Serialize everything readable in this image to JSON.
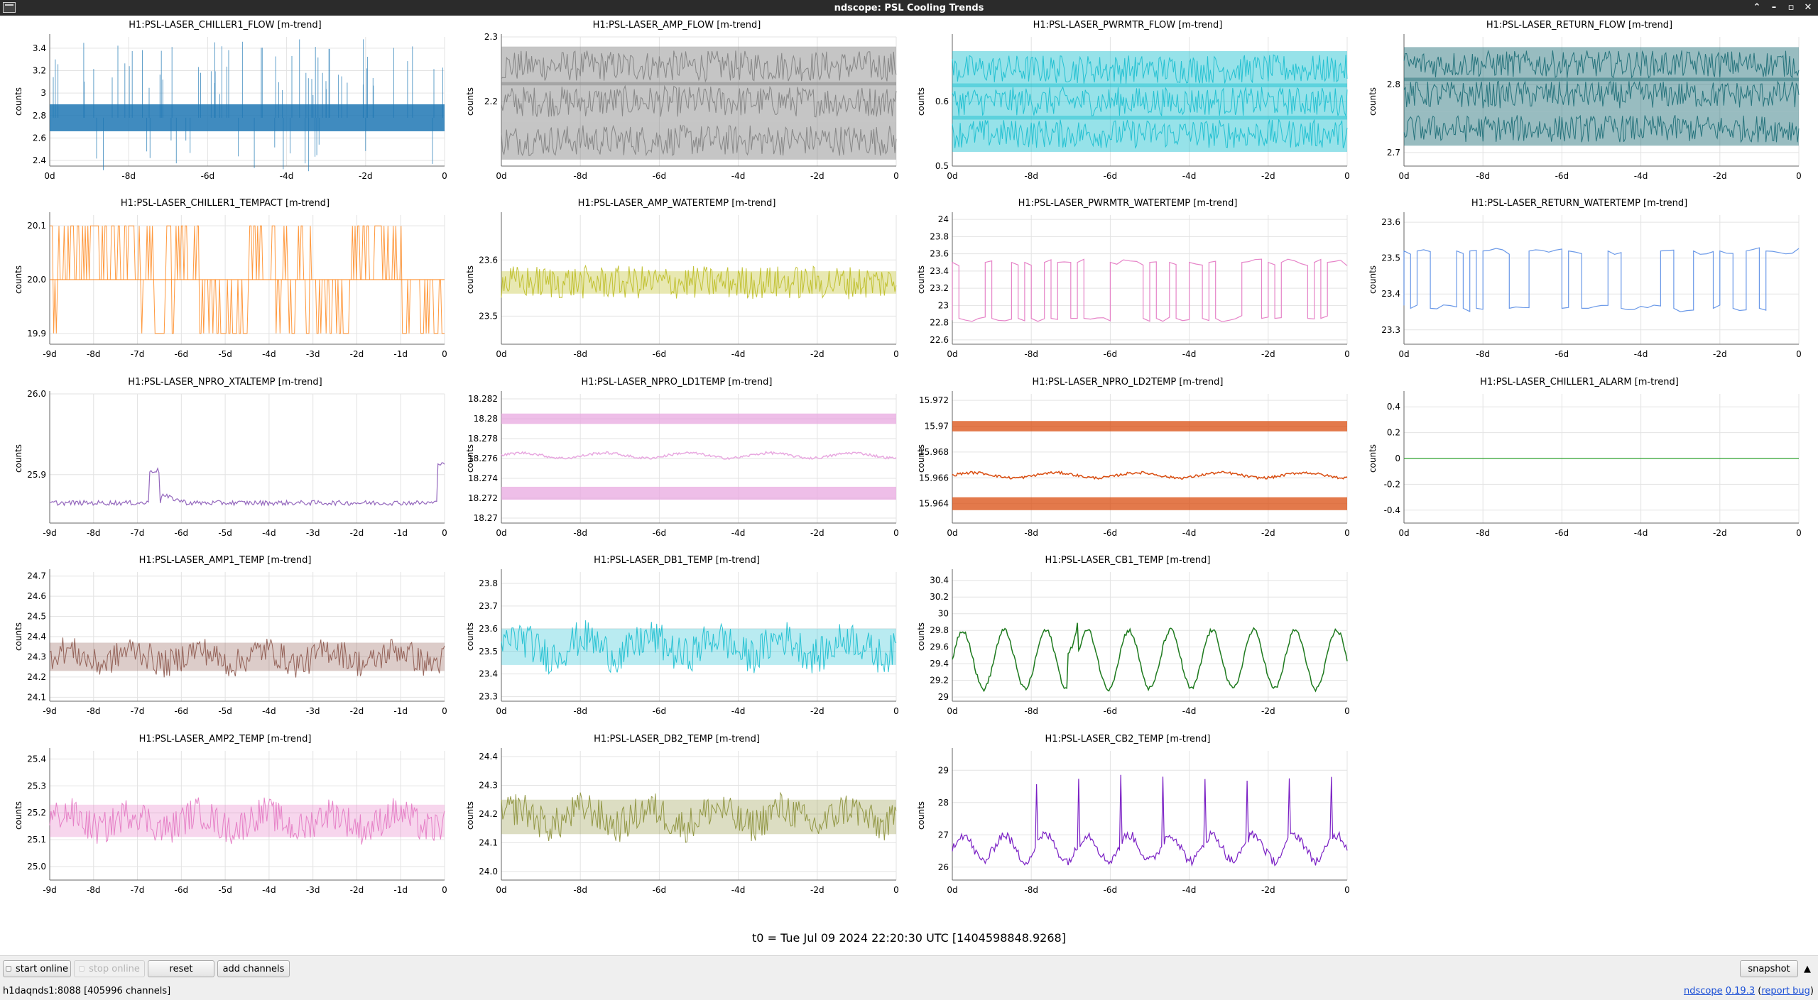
{
  "window": {
    "title": "ndscope: PSL Cooling Trends"
  },
  "icons": [
    "app-icon",
    "keep-above-icon",
    "minimize-icon",
    "maximize-icon",
    "close-icon"
  ],
  "plots": [
    {
      "id": "chiller1-flow",
      "row": 0,
      "col": 0,
      "title": "H1:PSL-LASER_CHILLER1_FLOW [m-trend]",
      "ylabel": "counts",
      "color": "#1f77b4",
      "style": "band",
      "ylim": [
        2.35,
        3.5
      ],
      "yticks": [
        "2.4",
        "2.6",
        "2.8",
        "3",
        "3.2",
        "3.4"
      ],
      "ytickvals": [
        2.4,
        2.6,
        2.8,
        3,
        3.2,
        3.4
      ],
      "xticks": [
        "0d",
        "-8d",
        "-6d",
        "-4d",
        "-2d",
        "0"
      ],
      "center": 2.78,
      "spread": 0.12,
      "spikes": "up"
    },
    {
      "id": "amp-flow",
      "row": 0,
      "col": 1,
      "title": "H1:PSL-LASER_AMP_FLOW [m-trend]",
      "ylabel": "counts",
      "color": "#7f7f7f",
      "style": "bands3",
      "ylim": [
        2.1,
        2.3
      ],
      "yticks": [
        "2.2",
        "2.3"
      ],
      "ytickvals": [
        2.2,
        2.3
      ],
      "xticks": [
        "0d",
        "-8d",
        "-6d",
        "-4d",
        "-2d",
        "0"
      ],
      "bands": [
        2.255,
        2.2,
        2.14
      ],
      "spread": 0.03
    },
    {
      "id": "pwrmtr-flow",
      "row": 0,
      "col": 2,
      "title": "H1:PSL-LASER_PWRMTR_FLOW [m-trend]",
      "ylabel": "counts",
      "color": "#17becf",
      "style": "bands3",
      "ylim": [
        0.5,
        0.7
      ],
      "yticks": [
        "0.5",
        "0.6"
      ],
      "ytickvals": [
        0.5,
        0.6
      ],
      "xticks": [
        "0d",
        "-8d",
        "-6d",
        "-4d",
        "-2d",
        "0"
      ],
      "bands": [
        0.65,
        0.6,
        0.55
      ],
      "spread": 0.028
    },
    {
      "id": "return-flow",
      "row": 0,
      "col": 3,
      "title": "H1:PSL-LASER_RETURN_FLOW [m-trend]",
      "ylabel": "counts",
      "color": "#1a6a74",
      "style": "bands3",
      "ylim": [
        2.68,
        2.87
      ],
      "yticks": [
        "2.7",
        "2.8"
      ],
      "ytickvals": [
        2.7,
        2.8
      ],
      "xticks": [
        "0d",
        "-8d",
        "-6d",
        "-4d",
        "-2d",
        "0"
      ],
      "bands": [
        2.83,
        2.785,
        2.735
      ],
      "spread": 0.025
    },
    {
      "id": "chiller1-tempact",
      "row": 1,
      "col": 0,
      "title": "H1:PSL-LASER_CHILLER1_TEMPACT [m-trend]",
      "ylabel": "counts",
      "color": "#ff7f0e",
      "style": "digital",
      "ylim": [
        19.88,
        20.12
      ],
      "yticks": [
        "19.9",
        "20.0",
        "20.1"
      ],
      "ytickvals": [
        19.9,
        20.0,
        20.1
      ],
      "xticks": [
        "-9d",
        "-8d",
        "-7d",
        "-6d",
        "-5d",
        "-4d",
        "-3d",
        "-2d",
        "-1d",
        "0"
      ],
      "center": 20.0,
      "spread": 0.1
    },
    {
      "id": "amp-watertemp",
      "row": 1,
      "col": 1,
      "title": "H1:PSL-LASER_AMP_WATERTEMP [m-trend]",
      "ylabel": "counts",
      "color": "#bcbd22",
      "style": "noisy",
      "ylim": [
        23.45,
        23.68
      ],
      "yticks": [
        "23.5",
        "23.6"
      ],
      "ytickvals": [
        23.5,
        23.6
      ],
      "xticks": [
        "0d",
        "-8d",
        "-6d",
        "-4d",
        "-2d",
        "0"
      ],
      "center": 23.56,
      "spread": 0.02
    },
    {
      "id": "pwrmtr-watertemp",
      "row": 1,
      "col": 2,
      "title": "H1:PSL-LASER_PWRMTR_WATERTEMP [m-trend]",
      "ylabel": "counts",
      "color": "#e377c2",
      "style": "square",
      "ylim": [
        22.55,
        24.05
      ],
      "yticks": [
        "22.6",
        "22.8",
        "23",
        "23.2",
        "23.4",
        "23.6",
        "23.8",
        "24"
      ],
      "ytickvals": [
        22.6,
        22.8,
        23,
        23.2,
        23.4,
        23.6,
        23.8,
        24
      ],
      "xticks": [
        "0d",
        "-8d",
        "-6d",
        "-4d",
        "-2d",
        "0"
      ],
      "low": 22.85,
      "high": 23.5
    },
    {
      "id": "return-watertemp",
      "row": 1,
      "col": 3,
      "title": "H1:PSL-LASER_RETURN_WATERTEMP [m-trend]",
      "ylabel": "counts",
      "color": "#5b8ee6",
      "style": "square",
      "ylim": [
        23.26,
        23.62
      ],
      "yticks": [
        "23.3",
        "23.4",
        "23.5",
        "23.6"
      ],
      "ytickvals": [
        23.3,
        23.4,
        23.5,
        23.6
      ],
      "xticks": [
        "0d",
        "-8d",
        "-6d",
        "-4d",
        "-2d",
        "0"
      ],
      "low": 23.36,
      "high": 23.52
    },
    {
      "id": "npro-xtaltemp",
      "row": 2,
      "col": 0,
      "title": "H1:PSL-LASER_NPRO_XTALTEMP [m-trend]",
      "ylabel": "counts",
      "color": "#9467bd",
      "style": "xtal",
      "ylim": [
        25.84,
        26.0
      ],
      "yticks": [
        "25.9",
        "26.0"
      ],
      "ytickvals": [
        25.9,
        26.0
      ],
      "xticks": [
        "-9d",
        "-8d",
        "-7d",
        "-6d",
        "-5d",
        "-4d",
        "-3d",
        "-2d",
        "-1d",
        "0"
      ],
      "center": 25.865
    },
    {
      "id": "npro-ld1temp",
      "row": 2,
      "col": 1,
      "title": "H1:PSL-LASER_NPRO_LD1TEMP [m-trend]",
      "ylabel": "counts",
      "color": "#e8a8e0",
      "style": "ld",
      "ylim": [
        18.2695,
        18.2825
      ],
      "yticks": [
        "18.27",
        "18.272",
        "18.274",
        "18.276",
        "18.278",
        "18.28",
        "18.282"
      ],
      "ytickvals": [
        18.27,
        18.272,
        18.274,
        18.276,
        18.278,
        18.28,
        18.282
      ],
      "xticks": [
        "0d",
        "-8d",
        "-6d",
        "-4d",
        "-2d",
        "0"
      ],
      "top": 18.28,
      "mid": 18.2763,
      "bot": 18.2725
    },
    {
      "id": "npro-ld2temp",
      "row": 2,
      "col": 2,
      "title": "H1:PSL-LASER_NPRO_LD2TEMP [m-trend]",
      "ylabel": "counts",
      "color": "#d94c0f",
      "style": "ld",
      "ylim": [
        15.9625,
        15.9725
      ],
      "yticks": [
        "15.964",
        "15.966",
        "15.968",
        "15.97",
        "15.972"
      ],
      "ytickvals": [
        15.964,
        15.966,
        15.968,
        15.97,
        15.972
      ],
      "xticks": [
        "0d",
        "-8d",
        "-6d",
        "-4d",
        "-2d",
        "0"
      ],
      "top": 15.97,
      "mid": 15.9662,
      "bot": 15.964
    },
    {
      "id": "chiller1-alarm",
      "row": 2,
      "col": 3,
      "title": "H1:PSL-LASER_CHILLER1_ALARM [m-trend]",
      "ylabel": "counts",
      "color": "#2ca02c",
      "style": "flat",
      "ylim": [
        -0.5,
        0.5
      ],
      "yticks": [
        "-0.4",
        "-0.2",
        "0",
        "0.2",
        "0.4"
      ],
      "ytickvals": [
        -0.4,
        -0.2,
        0,
        0.2,
        0.4
      ],
      "xticks": [
        "0d",
        "-8d",
        "-6d",
        "-4d",
        "-2d",
        "0"
      ],
      "center": 0
    },
    {
      "id": "amp1-temp",
      "row": 3,
      "col": 0,
      "title": "H1:PSL-LASER_AMP1_TEMP [m-trend]",
      "ylabel": "counts",
      "color": "#8c564b",
      "style": "wavy",
      "ylim": [
        24.08,
        24.72
      ],
      "yticks": [
        "24.1",
        "24.2",
        "24.3",
        "24.4",
        "24.5",
        "24.6",
        "24.7"
      ],
      "ytickvals": [
        24.1,
        24.2,
        24.3,
        24.4,
        24.5,
        24.6,
        24.7
      ],
      "xticks": [
        "-9d",
        "-8d",
        "-7d",
        "-6d",
        "-5d",
        "-4d",
        "-3d",
        "-2d",
        "-1d",
        "0"
      ],
      "center": 24.3,
      "spread": 0.07
    },
    {
      "id": "db1-temp",
      "row": 3,
      "col": 1,
      "title": "H1:PSL-LASER_DB1_TEMP [m-trend]",
      "ylabel": "counts",
      "color": "#17becf",
      "style": "wavy",
      "ylim": [
        23.28,
        23.85
      ],
      "yticks": [
        "23.3",
        "23.4",
        "23.5",
        "23.6",
        "23.7",
        "23.8"
      ],
      "ytickvals": [
        23.3,
        23.4,
        23.5,
        23.6,
        23.7,
        23.8
      ],
      "xticks": [
        "0d",
        "-8d",
        "-6d",
        "-4d",
        "-2d",
        "0"
      ],
      "center": 23.52,
      "spread": 0.08
    },
    {
      "id": "cb1-temp",
      "row": 3,
      "col": 2,
      "title": "H1:PSL-LASER_CB1_TEMP [m-trend]",
      "ylabel": "counts",
      "color": "#1e7a1e",
      "style": "daily",
      "ylim": [
        28.95,
        30.5
      ],
      "yticks": [
        "29",
        "29.2",
        "29.4",
        "29.6",
        "29.8",
        "30",
        "30.2",
        "30.4"
      ],
      "ytickvals": [
        29,
        29.2,
        29.4,
        29.6,
        29.8,
        30,
        30.2,
        30.4
      ],
      "xticks": [
        "0d",
        "-8d",
        "-6d",
        "-4d",
        "-2d",
        "0"
      ],
      "center": 29.45,
      "amp": 0.35
    },
    {
      "id": "amp2-temp",
      "row": 4,
      "col": 0,
      "title": "H1:PSL-LASER_AMP2_TEMP [m-trend]",
      "ylabel": "counts",
      "color": "#e377c2",
      "style": "wavy",
      "ylim": [
        24.95,
        25.43
      ],
      "yticks": [
        "25.0",
        "25.1",
        "25.2",
        "25.3",
        "25.4"
      ],
      "ytickvals": [
        25.0,
        25.1,
        25.2,
        25.3,
        25.4
      ],
      "xticks": [
        "-9d",
        "-8d",
        "-7d",
        "-6d",
        "-5d",
        "-4d",
        "-3d",
        "-2d",
        "-1d",
        "0"
      ],
      "center": 25.17,
      "spread": 0.06
    },
    {
      "id": "db2-temp",
      "row": 4,
      "col": 1,
      "title": "H1:PSL-LASER_DB2_TEMP [m-trend]",
      "ylabel": "counts",
      "color": "#8a8f36",
      "style": "wavy",
      "ylim": [
        23.97,
        24.42
      ],
      "yticks": [
        "24.0",
        "24.1",
        "24.2",
        "24.3",
        "24.4"
      ],
      "ytickvals": [
        24.0,
        24.1,
        24.2,
        24.3,
        24.4
      ],
      "xticks": [
        "0d",
        "-8d",
        "-6d",
        "-4d",
        "-2d",
        "0"
      ],
      "center": 24.19,
      "spread": 0.06
    },
    {
      "id": "cb2-temp",
      "row": 4,
      "col": 2,
      "title": "H1:PSL-LASER_CB2_TEMP [m-trend]",
      "ylabel": "counts",
      "color": "#7a1fc4",
      "style": "spiky",
      "ylim": [
        25.6,
        29.6
      ],
      "yticks": [
        "26",
        "27",
        "28",
        "29"
      ],
      "ytickvals": [
        26,
        27,
        28,
        29
      ],
      "xticks": [
        "0d",
        "-8d",
        "-6d",
        "-4d",
        "-2d",
        "0"
      ],
      "center": 26.6,
      "amp": 0.4
    }
  ],
  "t0_label": "t0 = Tue Jul 09 2024 22:20:30 UTC [1404598848.9268]",
  "controls": {
    "start_online": "start online",
    "stop_online": "stop online",
    "reset": "reset",
    "add_channels": "add channels",
    "snapshot": "snapshot"
  },
  "status": {
    "server": "h1daqnds1:8088  [405996 channels]",
    "app_name": "ndscope",
    "version": "0.19.3",
    "report_bug": "report bug"
  }
}
